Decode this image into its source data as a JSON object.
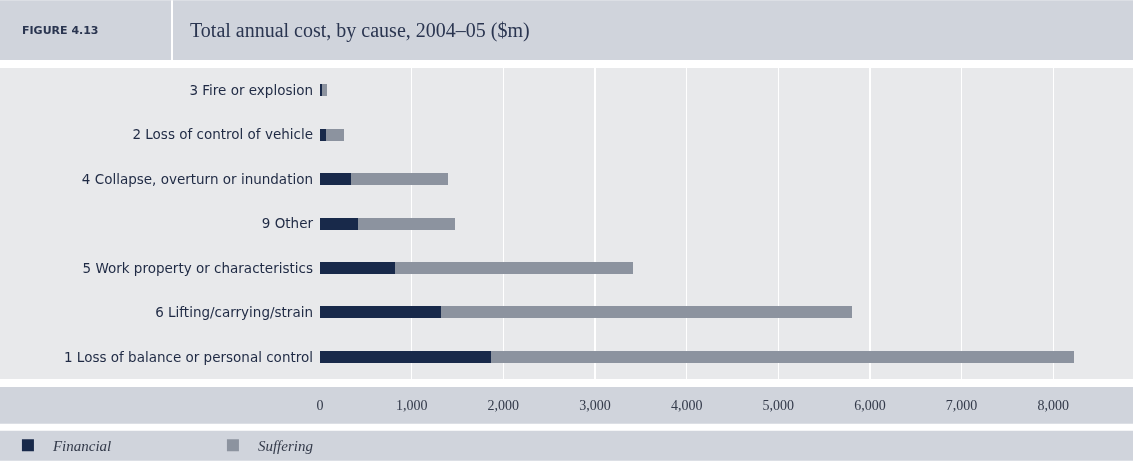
{
  "chart_data": {
    "type": "bar",
    "orientation": "horizontal",
    "stacked": true,
    "title": "Total annual cost, by cause, 2004–05 ($m)",
    "annotations": [
      "FIGURE 4.13"
    ],
    "categories": [
      "3 Fire or explosion",
      "2 Loss of control of vehicle",
      "4 Collapse, overturn or inundation",
      "9 Other",
      "5 Work property or characteristics",
      "6 Lifting/carrying/strain",
      "1 Loss of balance or personal control"
    ],
    "series": [
      {
        "name": "Financial",
        "color": "#18294a",
        "values": [
          20,
          60,
          340,
          410,
          820,
          1320,
          1870
        ]
      },
      {
        "name": "Suffering",
        "color": "#8c939f",
        "values": [
          60,
          200,
          1060,
          1060,
          2600,
          4480,
          6360
        ]
      }
    ],
    "xlim": [
      0,
      8870
    ],
    "xticks": [
      0,
      {
        "value": 1000,
        "label": "1,000"
      },
      {
        "value": 2000,
        "label": "2,000"
      },
      {
        "value": 3000,
        "label": "3,000"
      },
      {
        "value": 4000,
        "label": "4,000"
      },
      {
        "value": 5000,
        "label": "5,000"
      },
      {
        "value": 6000,
        "label": "6,000"
      },
      {
        "value": 7000,
        "label": "7,000"
      },
      {
        "value": 8000,
        "label": "8,000"
      }
    ],
    "grid": "x",
    "legend": "bottom left"
  }
}
